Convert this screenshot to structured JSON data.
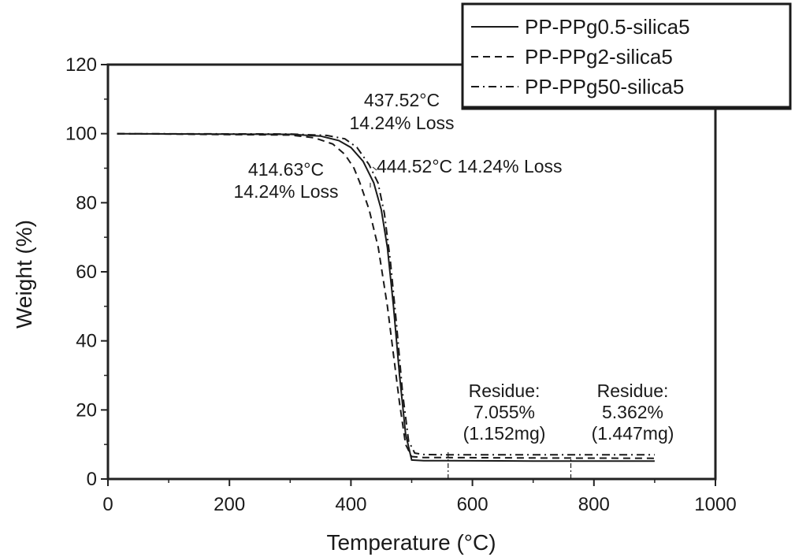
{
  "chart_data": {
    "type": "line",
    "title": "",
    "xlabel": "Temperature (°C)",
    "ylabel": "Weight (%)",
    "xlim": [
      0,
      1000
    ],
    "ylim": [
      0,
      120
    ],
    "x_ticks": [
      0,
      200,
      400,
      600,
      800,
      1000
    ],
    "y_ticks": [
      0,
      20,
      40,
      60,
      80,
      100,
      120
    ],
    "x_tick_labels": [
      "0",
      "200",
      "400",
      "600",
      "800",
      "1000"
    ],
    "y_tick_labels": [
      "0",
      "20",
      "40",
      "60",
      "80",
      "100",
      "120"
    ],
    "grid": false,
    "legend_position": "top-right",
    "series": [
      {
        "name": "PP-PPg0.5-silica5",
        "style": "solid",
        "x": [
          15,
          300,
          350,
          380,
          400,
          420,
          437.5,
          450,
          460,
          470,
          480,
          490,
          500,
          520,
          560,
          700,
          900
        ],
        "y": [
          100,
          99.8,
          99.3,
          98,
          96,
          92,
          85.8,
          78,
          67,
          50,
          30,
          13,
          5.5,
          5.3,
          5.3,
          5.2,
          5.2
        ]
      },
      {
        "name": "PP-PPg2-silica5",
        "style": "dashed",
        "x": [
          15,
          300,
          340,
          370,
          390,
          405,
          414.6,
          430,
          445,
          460,
          470,
          480,
          490,
          500,
          520,
          560,
          700,
          900
        ],
        "y": [
          100,
          99.6,
          98.8,
          97,
          94,
          90,
          85.8,
          78,
          67,
          50,
          36,
          22,
          10,
          6.5,
          6.2,
          6.2,
          6.1,
          6.0
        ]
      },
      {
        "name": "PP-PPg50-silica5",
        "style": "dashdot",
        "x": [
          15,
          300,
          360,
          390,
          410,
          430,
          444.5,
          455,
          465,
          475,
          485,
          495,
          505,
          520,
          560,
          700,
          900
        ],
        "y": [
          100,
          99.9,
          99.5,
          98.5,
          96,
          91,
          85.8,
          77,
          63,
          45,
          25,
          11,
          7.5,
          7.1,
          7.0,
          7.0,
          7.0
        ]
      }
    ],
    "annotations": [
      {
        "id": "a437",
        "lines": [
          "437.52°C",
          "14.24% Loss"
        ]
      },
      {
        "id": "a444",
        "lines": [
          "444.52°C 14.24% Loss"
        ]
      },
      {
        "id": "a414",
        "lines": [
          "414.63°C",
          "14.24% Loss"
        ]
      },
      {
        "id": "res1",
        "lines": [
          "Residue:",
          "7.055%",
          "(1.152mg)"
        ]
      },
      {
        "id": "res2",
        "lines": [
          "Residue:",
          "5.362%",
          "(1.447mg)"
        ]
      }
    ],
    "reference_lines": [
      {
        "x": 560,
        "y_from": 0,
        "y_to": 7.0
      },
      {
        "x": 762,
        "y_from": 0,
        "y_to": 5.2
      }
    ]
  }
}
